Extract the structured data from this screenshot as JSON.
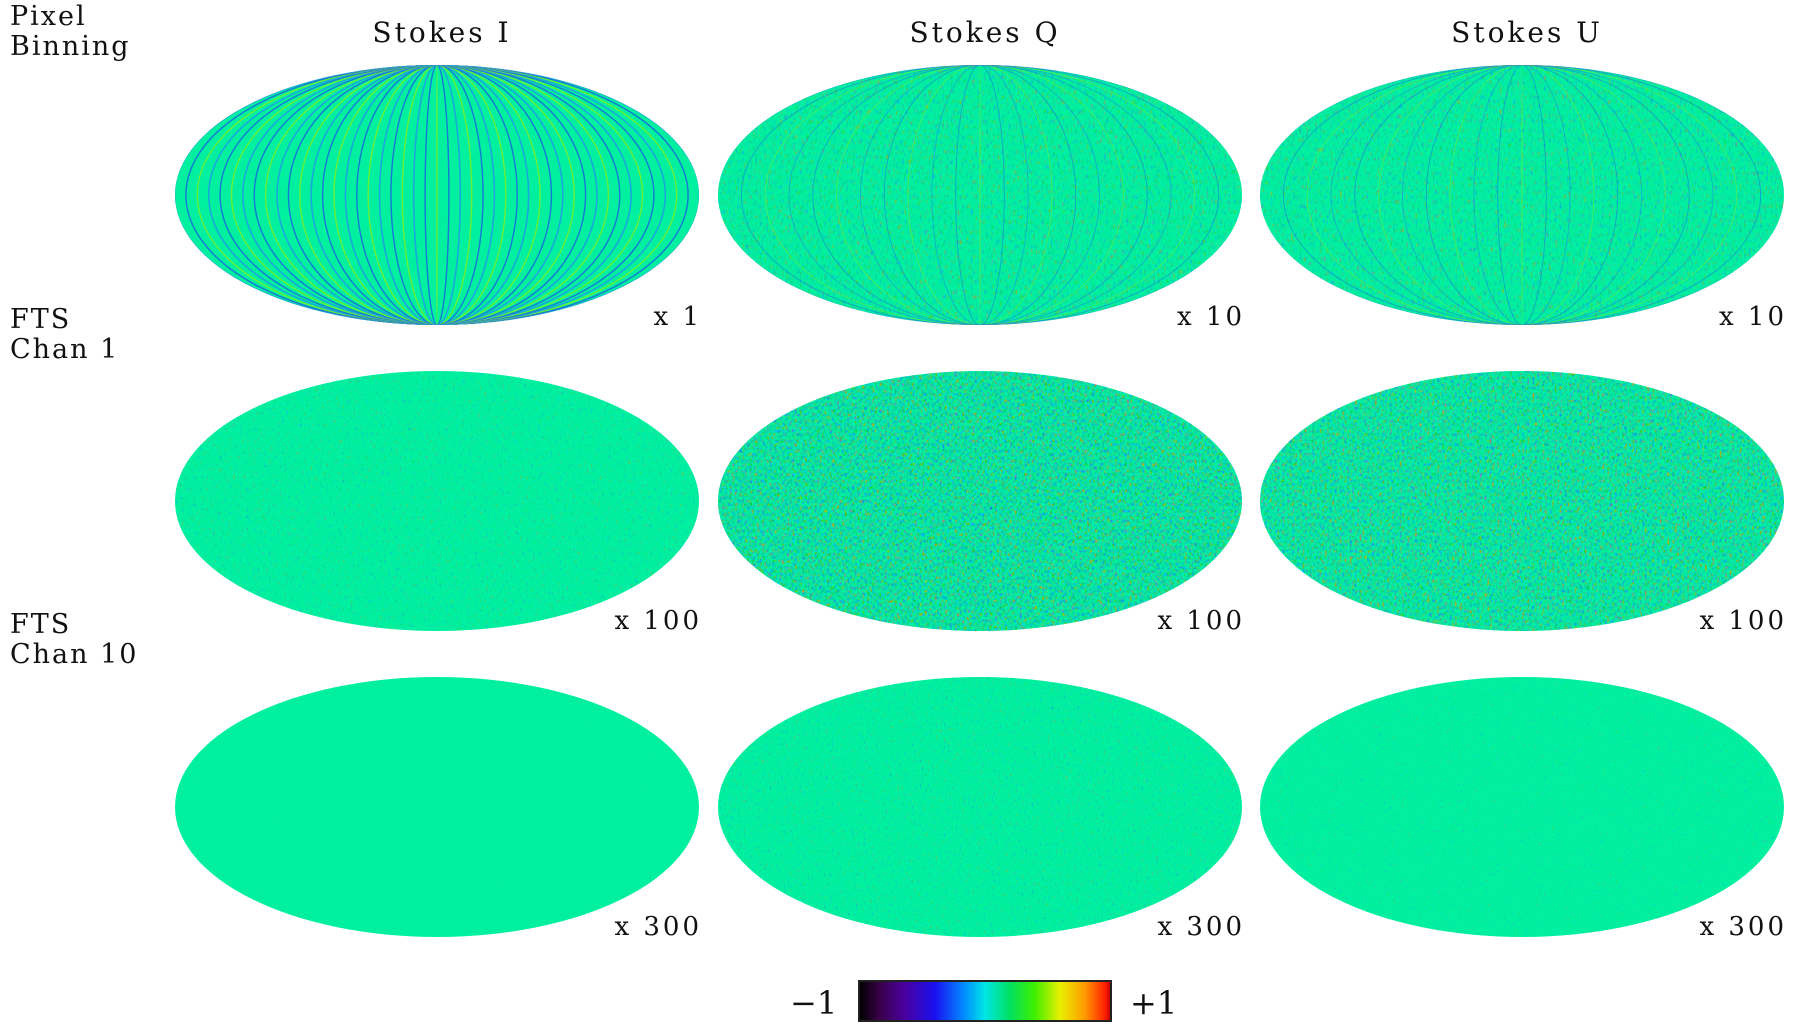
{
  "columns": [
    {
      "title": "Stokes I"
    },
    {
      "title": "Stokes Q"
    },
    {
      "title": "Stokes U"
    }
  ],
  "rows": [
    {
      "label": "Pixel\nBinning",
      "scales": [
        "x 1",
        "x 10",
        "x 10"
      ]
    },
    {
      "label": "FTS\nChan 1",
      "scales": [
        "x 100",
        "x 100",
        "x 100"
      ]
    },
    {
      "label": "FTS\nChan 10",
      "scales": [
        "x 300",
        "x 300",
        "x 300"
      ]
    }
  ],
  "colorbar": {
    "min_label": "−1",
    "max_label": "+1",
    "range": [
      -1,
      1
    ],
    "colormap": "rainbow (black-purple-blue-cyan-green-yellow-orange-red)"
  },
  "maps": {
    "projection": "Mollweide all-sky",
    "base_color": "#00f0a0"
  }
}
